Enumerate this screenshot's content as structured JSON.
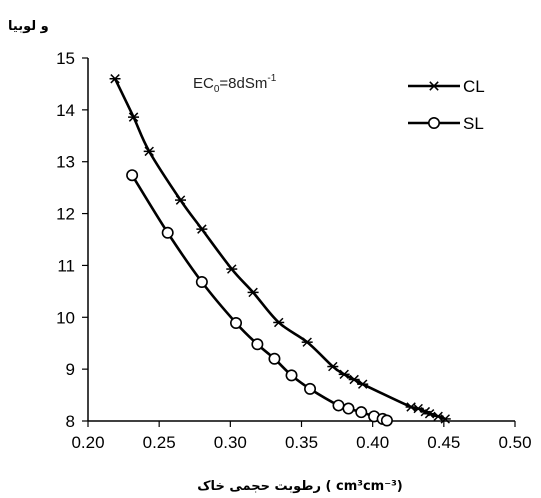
{
  "chart_data": {
    "type": "line",
    "ylabel": "و لوبیا",
    "xlabel_text": "رطوبت حجمی خاک",
    "xlabel_unit_open": "(",
    "xlabel_unit": "cm³cm⁻³",
    "xlabel_unit_close": ")",
    "annotation": {
      "base": "EC",
      "sub": "0",
      "main": "=8dSm",
      "sup": "-1"
    },
    "xlim": [
      0.2,
      0.5
    ],
    "ylim": [
      8,
      15
    ],
    "x_ticks": [
      "0.20",
      "0.25",
      "0.30",
      "0.35",
      "0.40",
      "0.45",
      "0.50"
    ],
    "y_ticks": [
      "8",
      "9",
      "10",
      "11",
      "12",
      "13",
      "14",
      "15"
    ],
    "grid": false,
    "legend_position": "top-right",
    "series": [
      {
        "name": "CL",
        "marker": "asterisk",
        "color": "#000000",
        "x": [
          0.219,
          0.232,
          0.243,
          0.265,
          0.28,
          0.301,
          0.316,
          0.334,
          0.354,
          0.372,
          0.38,
          0.387,
          0.393,
          0.427,
          0.432,
          0.437,
          0.44,
          0.446,
          0.451
        ],
        "y": [
          14.6,
          13.86,
          13.2,
          12.26,
          11.7,
          10.93,
          10.48,
          9.9,
          9.52,
          9.05,
          8.9,
          8.8,
          8.71,
          8.27,
          8.24,
          8.18,
          8.14,
          8.09,
          8.04
        ]
      },
      {
        "name": "SL",
        "marker": "circle",
        "color": "#000000",
        "x": [
          0.231,
          0.256,
          0.28,
          0.304,
          0.319,
          0.331,
          0.343,
          0.356,
          0.376,
          0.383,
          0.392,
          0.401,
          0.407,
          0.41
        ],
        "y": [
          12.74,
          11.63,
          10.68,
          9.89,
          9.48,
          9.2,
          8.88,
          8.62,
          8.3,
          8.24,
          8.17,
          8.09,
          8.04,
          8.01
        ]
      }
    ]
  }
}
